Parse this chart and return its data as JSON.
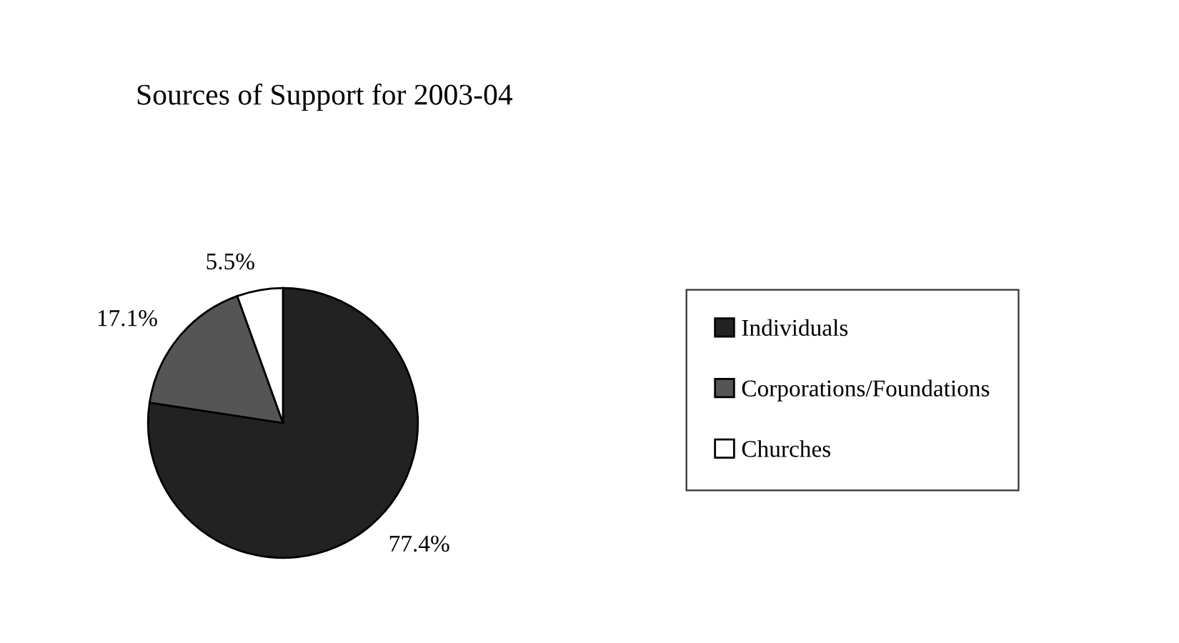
{
  "chart_data": {
    "type": "pie",
    "title": "Sources of Support for 2003-04",
    "categories": [
      "Individuals",
      "Corporations/Foundations",
      "Churches"
    ],
    "values": [
      77.4,
      17.1,
      5.5
    ],
    "colors": [
      "#222222",
      "#555555",
      "#ffffff"
    ],
    "value_labels": [
      "77.4%",
      "17.1%",
      "5.5%"
    ],
    "legend": "right"
  }
}
